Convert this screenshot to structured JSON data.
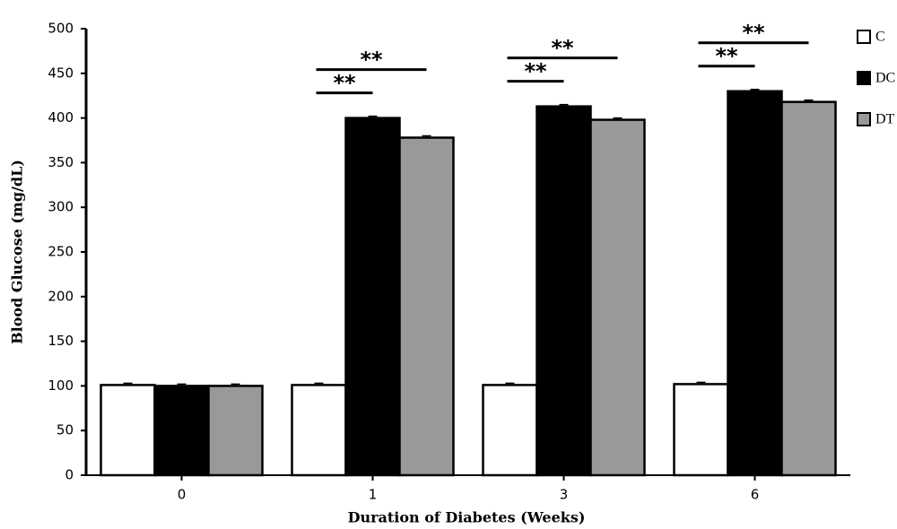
{
  "chart_data": {
    "type": "bar",
    "y_label": "Blood Glucose (mg/dL)",
    "x_label": "Duration of Diabetes (Weeks)",
    "categories": [
      "0",
      "1",
      "3",
      "6"
    ],
    "series": [
      {
        "name": "C",
        "color": "#ffffff",
        "values": [
          101,
          101,
          101,
          102
        ],
        "errors": [
          2,
          2,
          2,
          2
        ]
      },
      {
        "name": "DC",
        "color": "#000000",
        "values": [
          100,
          400,
          413,
          430
        ],
        "errors": [
          2,
          2,
          2,
          2
        ],
        "annotations": [
          null,
          "**",
          "**",
          "**"
        ]
      },
      {
        "name": "DT",
        "color": "#999999",
        "values": [
          100,
          378,
          398,
          418
        ],
        "errors": [
          2,
          2,
          2,
          2
        ],
        "annotations": [
          null,
          "**",
          "**",
          "**"
        ]
      }
    ],
    "ylim": [
      0,
      500
    ],
    "yticks": [
      0,
      50,
      100,
      150,
      200,
      250,
      300,
      350,
      400,
      450,
      500
    ],
    "legend": "top-right"
  }
}
